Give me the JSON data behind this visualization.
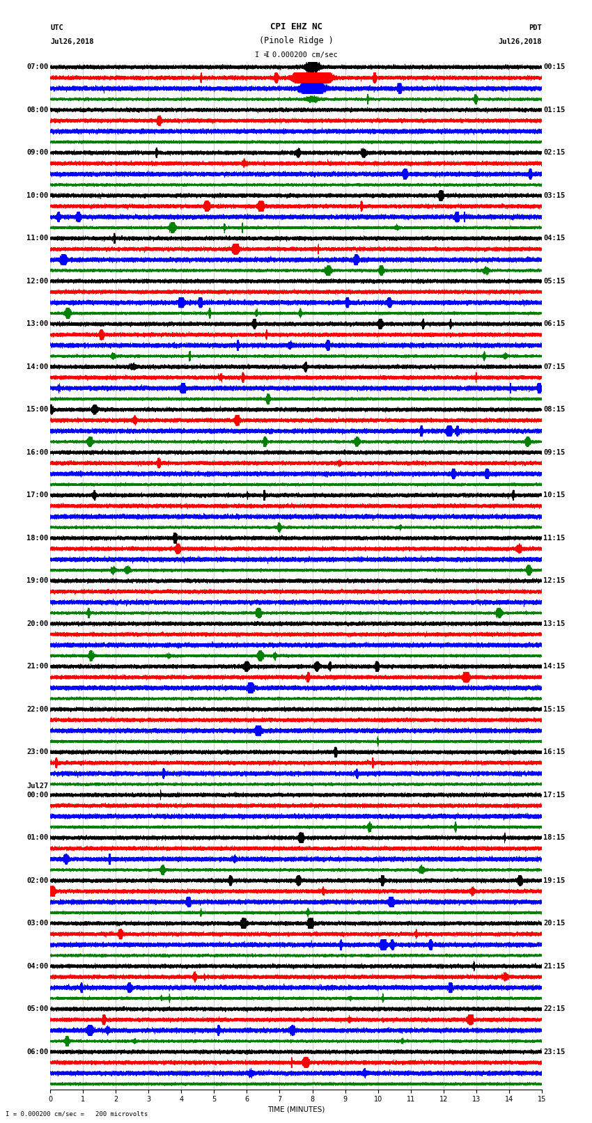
{
  "title_line1": "CPI EHZ NC",
  "title_line2": "(Pinole Ridge )",
  "scale_label": "I = 0.000200 cm/sec",
  "bottom_label": "I = 0.000200 cm/sec =   200 microvolts",
  "utc_label": "UTC",
  "utc_date": "Jul26,2018",
  "pdt_label": "PDT",
  "pdt_date": "Jul26,2018",
  "jul27_label": "Jul27",
  "xlabel": "TIME (MINUTES)",
  "left_times": [
    "07:00",
    "08:00",
    "09:00",
    "10:00",
    "11:00",
    "12:00",
    "13:00",
    "14:00",
    "15:00",
    "16:00",
    "17:00",
    "18:00",
    "19:00",
    "20:00",
    "21:00",
    "22:00",
    "23:00",
    "00:00",
    "01:00",
    "02:00",
    "03:00",
    "04:00",
    "05:00",
    "06:00"
  ],
  "right_times": [
    "00:15",
    "01:15",
    "02:15",
    "03:15",
    "04:15",
    "05:15",
    "06:15",
    "07:15",
    "08:15",
    "09:15",
    "10:15",
    "11:15",
    "12:15",
    "13:15",
    "14:15",
    "15:15",
    "16:15",
    "17:15",
    "18:15",
    "19:15",
    "20:15",
    "21:15",
    "22:15",
    "23:15"
  ],
  "colors": [
    "black",
    "red",
    "blue",
    "green"
  ],
  "n_hours": 24,
  "n_traces_per_hour": 4,
  "duration_minutes": 15,
  "sample_rate": 50,
  "bg_color": "white",
  "grid_color": "#888888",
  "title_fontsize": 9,
  "label_fontsize": 7.5,
  "tick_fontsize": 7,
  "time_label_fontsize": 7.5,
  "jul27_hour": 17,
  "earthquake_row": 0,
  "earthquake_time_min": 8.0,
  "seed": 123
}
